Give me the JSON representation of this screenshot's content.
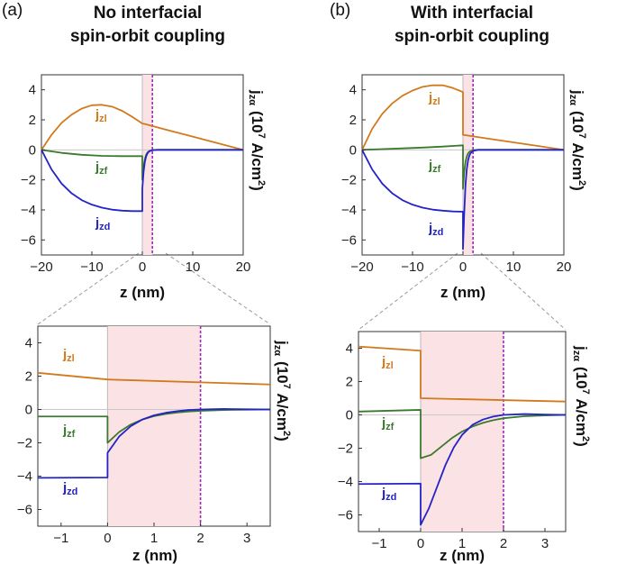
{
  "figure": {
    "panel_a_label": "(a)",
    "panel_b_label": "(b)",
    "title_a_line1": "No interfacial",
    "title_a_line2": "spin-orbit coupling",
    "title_b_line1": "With interfacial",
    "title_b_line2": "spin-orbit coupling",
    "xlabel": "z (nm)",
    "ylabel_base": "j",
    "ylabel_sub": "zα",
    "ylabel_units_prefix": "(10",
    "ylabel_units_exp": "7",
    "ylabel_units_mid": " A/cm",
    "ylabel_units_exp2": "2",
    "ylabel_units_suffix": ")",
    "series_base": "j",
    "series_colors": {
      "jzl": "#d2791c",
      "jzf": "#3a7a2e",
      "jzd": "#2323c8"
    },
    "shade_color": "#fbe2e4",
    "dashed_line_color": "#9b2bb8"
  },
  "chart_data": [
    {
      "id": "a-top",
      "type": "line",
      "title": "No interfacial spin-orbit coupling",
      "xlabel": "z (nm)",
      "ylabel": "jzα (10^7 A/cm^2)",
      "xlim": [
        -20,
        20
      ],
      "ylim": [
        -7,
        5
      ],
      "xticks": [
        -20,
        -10,
        0,
        10,
        20
      ],
      "yticks": [
        4,
        2,
        0,
        -2,
        -4,
        -6
      ],
      "shaded_region": [
        0,
        2
      ],
      "dashed_x": 2,
      "series": [
        {
          "name": "jzl",
          "subscript": "zl",
          "x": [
            -20,
            -18,
            -16,
            -14,
            -12,
            -10,
            -8,
            -6,
            -4,
            -2,
            0,
            0.5,
            5,
            10,
            15,
            20
          ],
          "y": [
            0,
            1.0,
            1.8,
            2.35,
            2.75,
            2.97,
            3.0,
            2.88,
            2.6,
            2.2,
            1.75,
            1.72,
            1.32,
            0.88,
            0.44,
            0
          ]
        },
        {
          "name": "jzf",
          "subscript": "zf",
          "x": [
            -20,
            -16,
            -12,
            -8,
            -4,
            0,
            0,
            0.25,
            0.5,
            0.75,
            1,
            1.25,
            1.5,
            2,
            3,
            5,
            10,
            20
          ],
          "y": [
            0,
            -0.2,
            -0.33,
            -0.4,
            -0.42,
            -0.42,
            -2.0,
            -1.12,
            -0.62,
            -0.34,
            -0.19,
            -0.1,
            -0.06,
            -0.02,
            0,
            0,
            0,
            0
          ]
        },
        {
          "name": "jzd",
          "subscript": "zd",
          "x": [
            -20,
            -18,
            -16,
            -14,
            -12,
            -10,
            -8,
            -6,
            -4,
            -2,
            0,
            0,
            0.25,
            0.5,
            0.75,
            1,
            1.25,
            1.5,
            2,
            3,
            5,
            10,
            20
          ],
          "y": [
            0,
            -1.3,
            -2.25,
            -2.9,
            -3.35,
            -3.65,
            -3.85,
            -3.98,
            -4.05,
            -4.08,
            -4.08,
            -2.6,
            -1.46,
            -0.81,
            -0.45,
            -0.25,
            -0.14,
            -0.08,
            -0.02,
            0,
            0,
            0,
            0
          ]
        }
      ],
      "annotations": [
        "jzl",
        "jzf",
        "jzd"
      ]
    },
    {
      "id": "b-top",
      "type": "line",
      "title": "With interfacial spin-orbit coupling",
      "xlabel": "z (nm)",
      "ylabel": "jzα (10^7 A/cm^2)",
      "xlim": [
        -20,
        20
      ],
      "ylim": [
        -7,
        5
      ],
      "xticks": [
        -20,
        -10,
        0,
        10,
        20
      ],
      "yticks": [
        4,
        2,
        0,
        -2,
        -4,
        -6
      ],
      "shaded_region": [
        0,
        2
      ],
      "dashed_x": 2,
      "series": [
        {
          "name": "jzl",
          "subscript": "zl",
          "x": [
            -20,
            -18,
            -16,
            -14,
            -12,
            -10,
            -8,
            -6,
            -4,
            -2,
            0,
            0,
            5,
            10,
            15,
            20
          ],
          "y": [
            0,
            1.4,
            2.4,
            3.1,
            3.6,
            3.95,
            4.2,
            4.3,
            4.3,
            4.12,
            3.85,
            1.0,
            0.75,
            0.5,
            0.25,
            0
          ]
        },
        {
          "name": "jzf",
          "subscript": "zf",
          "x": [
            -20,
            -16,
            -12,
            -8,
            -4,
            0,
            0,
            0.25,
            0.5,
            0.75,
            1,
            1.25,
            1.5,
            2,
            3,
            5,
            10,
            20
          ],
          "y": [
            0,
            0.05,
            0.1,
            0.15,
            0.22,
            0.3,
            -2.6,
            -1.46,
            -0.81,
            -0.45,
            -0.25,
            -0.14,
            -0.08,
            -0.02,
            0,
            0,
            0,
            0
          ]
        },
        {
          "name": "jzd",
          "subscript": "zd",
          "x": [
            -20,
            -18,
            -16,
            -14,
            -12,
            -10,
            -8,
            -6,
            -4,
            -2,
            0,
            0,
            0.25,
            0.5,
            0.75,
            1,
            1.25,
            1.5,
            2,
            3,
            5,
            10,
            20
          ],
          "y": [
            0,
            -1.3,
            -2.25,
            -2.9,
            -3.35,
            -3.65,
            -3.85,
            -3.98,
            -4.05,
            -4.1,
            -4.12,
            -6.6,
            -4.2,
            -2.35,
            -1.3,
            -0.72,
            -0.4,
            -0.22,
            -0.07,
            0,
            0,
            0,
            0
          ]
        }
      ],
      "annotations": [
        "jzl",
        "jzf",
        "jzd"
      ]
    },
    {
      "id": "a-bottom",
      "type": "line",
      "xlabel": "z (nm)",
      "ylabel": "jzα (10^7 A/cm^2)",
      "xlim": [
        -1.5,
        3.5
      ],
      "ylim": [
        -7,
        5
      ],
      "xticks": [
        -1,
        0,
        1,
        2,
        3
      ],
      "yticks": [
        4,
        2,
        0,
        -2,
        -4,
        -6
      ],
      "shaded_region": [
        0,
        2
      ],
      "dashed_x": 2,
      "series": [
        {
          "name": "jzl",
          "subscript": "zl",
          "x": [
            -1.5,
            0,
            3.5
          ],
          "y": [
            2.2,
            1.8,
            1.5
          ]
        },
        {
          "name": "jzf",
          "subscript": "zf",
          "x": [
            -1.5,
            0,
            0,
            0.25,
            0.5,
            0.75,
            1,
            1.25,
            1.5,
            1.75,
            2,
            2.5,
            3,
            3.5
          ],
          "y": [
            -0.42,
            -0.42,
            -2.0,
            -1.35,
            -0.9,
            -0.6,
            -0.4,
            -0.27,
            -0.18,
            -0.12,
            -0.08,
            -0.03,
            -0.01,
            0
          ]
        },
        {
          "name": "jzd",
          "subscript": "zd",
          "x": [
            -1.5,
            0,
            0,
            0.25,
            0.5,
            0.75,
            1,
            1.25,
            1.5,
            1.75,
            2,
            2.5,
            3,
            3.5
          ],
          "y": [
            -4.1,
            -4.08,
            -2.6,
            -1.62,
            -1.0,
            -0.6,
            -0.35,
            -0.2,
            -0.1,
            -0.03,
            0.0,
            0.03,
            0.01,
            0
          ]
        }
      ],
      "annotations": [
        "jzl",
        "jzf",
        "jzd"
      ]
    },
    {
      "id": "b-bottom",
      "type": "line",
      "xlabel": "z (nm)",
      "ylabel": "jzα (10^7 A/cm^2)",
      "xlim": [
        -1.5,
        3.5
      ],
      "ylim": [
        -7,
        5
      ],
      "xticks": [
        -1,
        0,
        1,
        2,
        3
      ],
      "yticks": [
        4,
        2,
        0,
        -2,
        -4,
        -6
      ],
      "shaded_region": [
        0,
        2
      ],
      "dashed_x": 2,
      "series": [
        {
          "name": "jzl",
          "subscript": "zl",
          "x": [
            -1.5,
            0,
            0,
            3.5
          ],
          "y": [
            4.1,
            3.85,
            1.0,
            0.8
          ]
        },
        {
          "name": "jzf",
          "subscript": "zf",
          "x": [
            -1.5,
            0,
            0,
            0.25,
            0.5,
            0.75,
            1,
            1.25,
            1.5,
            1.75,
            2,
            2.5,
            3,
            3.5
          ],
          "y": [
            0.2,
            0.3,
            -2.6,
            -2.4,
            -1.9,
            -1.4,
            -1.0,
            -0.7,
            -0.48,
            -0.32,
            -0.2,
            -0.08,
            -0.03,
            0
          ]
        },
        {
          "name": "jzd",
          "subscript": "zd",
          "x": [
            -1.5,
            0,
            0,
            0.2,
            0.4,
            0.6,
            0.8,
            1.0,
            1.25,
            1.5,
            1.75,
            2,
            2.5,
            3,
            3.5
          ],
          "y": [
            -4.15,
            -4.12,
            -6.6,
            -5.6,
            -4.3,
            -3.0,
            -1.95,
            -1.2,
            -0.6,
            -0.28,
            -0.1,
            0.0,
            0.05,
            0.02,
            0
          ]
        }
      ],
      "annotations": [
        "jzl",
        "jzf",
        "jzd"
      ]
    }
  ]
}
